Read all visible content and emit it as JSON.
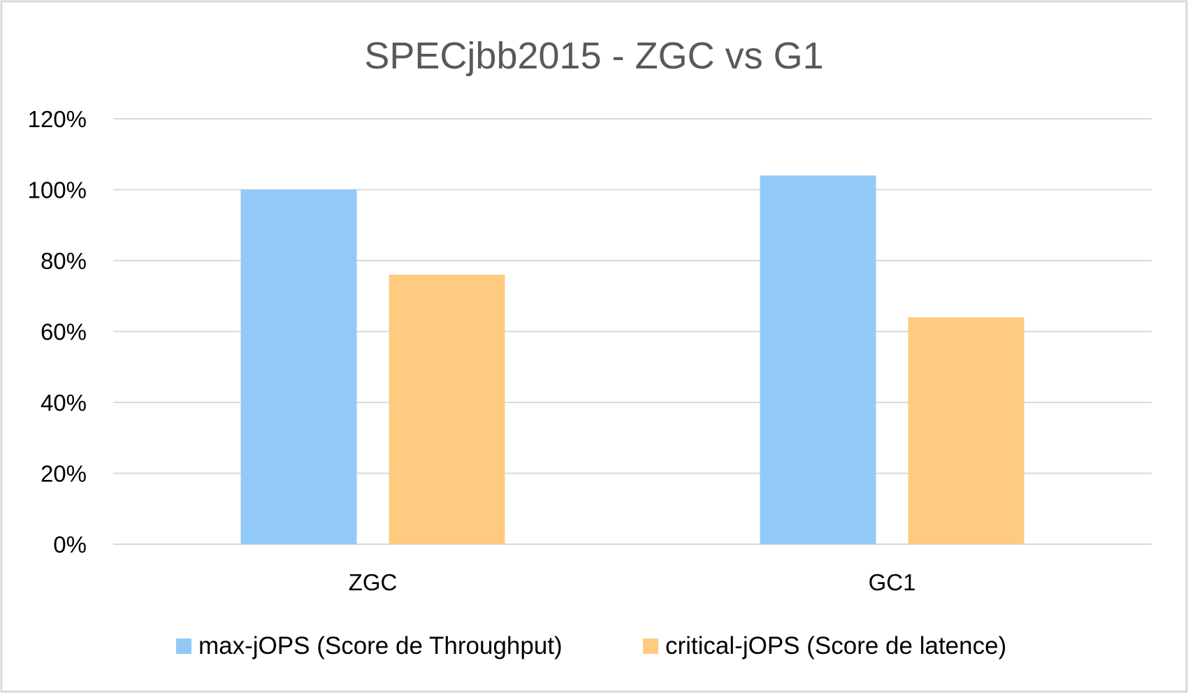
{
  "chart_data": {
    "type": "bar",
    "title": "SPECjbb2015 - ZGC vs G1",
    "xlabel": "",
    "ylabel": "",
    "categories": [
      "ZGC",
      "GC1"
    ],
    "series": [
      {
        "name": "max-jOPS (Score de Throughput)",
        "values": [
          100,
          104
        ],
        "color": "#93c9f6"
      },
      {
        "name": "critical-jOPS (Score de latence)",
        "values": [
          76,
          64
        ],
        "color": "#fecb80"
      }
    ],
    "ylim": [
      0,
      120
    ],
    "yticks": [
      0,
      20,
      40,
      60,
      80,
      100,
      120
    ],
    "ytick_labels": [
      "0%",
      "20%",
      "40%",
      "60%",
      "80%",
      "100%",
      "120%"
    ],
    "grid": true,
    "legend_position": "bottom"
  }
}
